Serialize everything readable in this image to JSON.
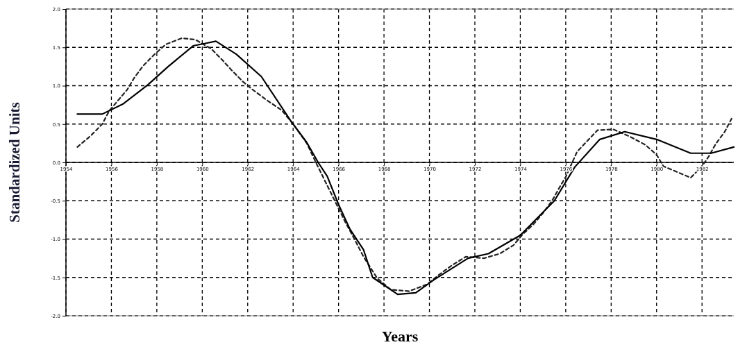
{
  "chart_data": {
    "type": "line",
    "xlabel": "Years",
    "ylabel": "Standardized Units",
    "xlim": [
      1954,
      1983.4
    ],
    "ylim": [
      -2,
      2
    ],
    "xticks": [
      1954,
      1956,
      1958,
      1960,
      1962,
      1964,
      1966,
      1968,
      1970,
      1972,
      1974,
      1976,
      1978,
      1980,
      1982
    ],
    "yticks": [
      {
        "value": -2,
        "label": "-2.0"
      },
      {
        "value": -1.5,
        "label": "-1.5"
      },
      {
        "value": -1,
        "label": "-1.0"
      },
      {
        "value": -0.5,
        "label": "-0.5"
      },
      {
        "value": 0,
        "label": "0.0"
      },
      {
        "value": 0.5,
        "label": "0.5"
      },
      {
        "value": 1,
        "label": "1.0"
      },
      {
        "value": 1.5,
        "label": "1.5"
      },
      {
        "value": 2,
        "label": "2.0"
      }
    ],
    "grid": true,
    "series": [
      {
        "color": "#000000",
        "line_style": "solid",
        "x": [
          1954.5,
          1955.6,
          1956.5,
          1957.6,
          1958.5,
          1959.6,
          1960.1,
          1960.6,
          1961.5,
          1962.6,
          1963.9,
          1964.6,
          1965.1,
          1965.5,
          1966,
          1966.5,
          1967.1,
          1967.5,
          1968.6,
          1969.4,
          1970.2,
          1971.7,
          1972.6,
          1974,
          1975.5,
          1976.4,
          1977.5,
          1978.6,
          1980,
          1981.5,
          1982.4,
          1983.4
        ],
        "values": [
          0.63,
          0.63,
          0.76,
          1.01,
          1.25,
          1.52,
          1.55,
          1.58,
          1.41,
          1.12,
          0.54,
          0.26,
          0,
          -0.18,
          -0.55,
          -0.87,
          -1.14,
          -1.5,
          -1.72,
          -1.7,
          -1.53,
          -1.25,
          -1.19,
          -0.95,
          -0.5,
          -0.06,
          0.3,
          0.4,
          0.3,
          0.12,
          0.12,
          0.2
        ]
      },
      {
        "color": "#222222",
        "line_style": "dashed",
        "x": [
          1954.5,
          1955.1,
          1955.6,
          1955.9,
          1956.7,
          1957,
          1957.4,
          1957.9,
          1958.4,
          1959.1,
          1959.7,
          1960.4,
          1960.9,
          1961.3,
          1961.8,
          1962.3,
          1962.9,
          1963.5,
          1964,
          1964.6,
          1965,
          1965.5,
          1966,
          1966.3,
          1966.7,
          1967.1,
          1967.4,
          1967.7,
          1968.3,
          1969.1,
          1969.9,
          1970.4,
          1971,
          1971.6,
          1972.4,
          1973.1,
          1973.7,
          1974.1,
          1974.6,
          1975,
          1975.4,
          1975.7,
          1976,
          1976.5,
          1977.4,
          1978.1,
          1978.8,
          1979.5,
          1980,
          1980.3,
          1981.5,
          1982,
          1982.3,
          1982.6,
          1983,
          1983.3
        ],
        "values": [
          0.2,
          0.35,
          0.5,
          0.67,
          0.95,
          1.1,
          1.26,
          1.41,
          1.54,
          1.62,
          1.6,
          1.48,
          1.33,
          1.2,
          1.05,
          0.93,
          0.8,
          0.68,
          0.5,
          0.25,
          0,
          -0.3,
          -0.6,
          -0.78,
          -1,
          -1.23,
          -1.37,
          -1.51,
          -1.66,
          -1.68,
          -1.59,
          -1.47,
          -1.34,
          -1.23,
          -1.25,
          -1.19,
          -1.08,
          -0.94,
          -0.8,
          -0.66,
          -0.5,
          -0.34,
          -0.19,
          0.14,
          0.42,
          0.43,
          0.34,
          0.23,
          0.1,
          -0.05,
          -0.2,
          -0.05,
          0.08,
          0.24,
          0.4,
          0.57
        ]
      }
    ]
  }
}
